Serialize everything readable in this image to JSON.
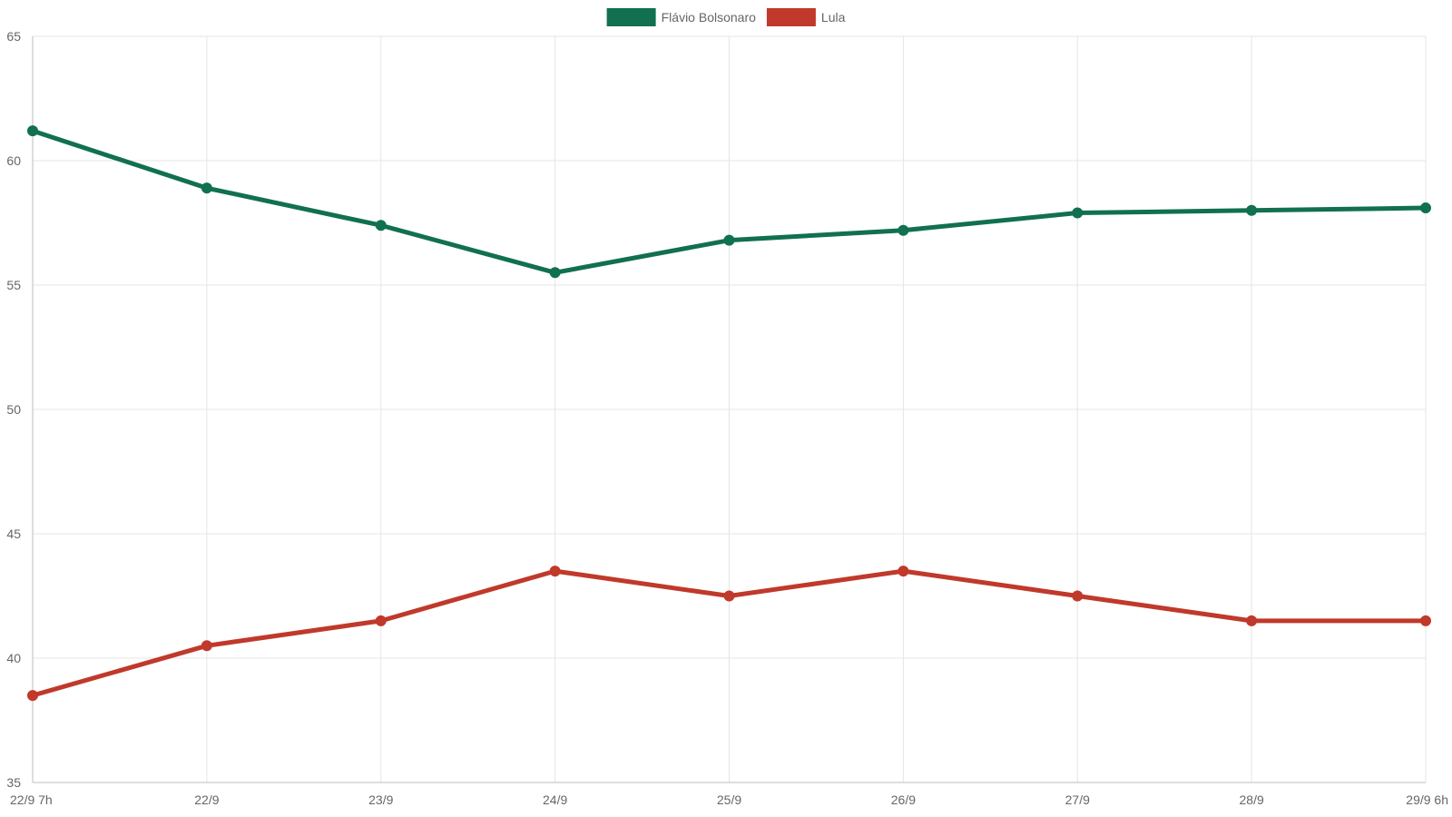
{
  "chart_data": {
    "type": "line",
    "categories": [
      "22/9 7h",
      "22/9",
      "23/9",
      "24/9",
      "25/9",
      "26/9",
      "27/9",
      "28/9",
      "29/9 6h"
    ],
    "series": [
      {
        "name": "Flávio Bolsonaro",
        "color": "#11704f",
        "values": [
          61.2,
          58.9,
          57.4,
          55.5,
          56.8,
          57.2,
          57.9,
          58.0,
          58.1
        ]
      },
      {
        "name": "Lula",
        "color": "#c0392b",
        "values": [
          38.5,
          40.5,
          41.5,
          43.5,
          42.5,
          43.5,
          42.5,
          41.5,
          41.5
        ]
      }
    ],
    "ylim": [
      35,
      65
    ],
    "yticks": [
      35,
      40,
      45,
      50,
      55,
      60,
      65
    ],
    "grid": true,
    "legend_position": "top-center",
    "title": "",
    "xlabel": "",
    "ylabel": ""
  }
}
